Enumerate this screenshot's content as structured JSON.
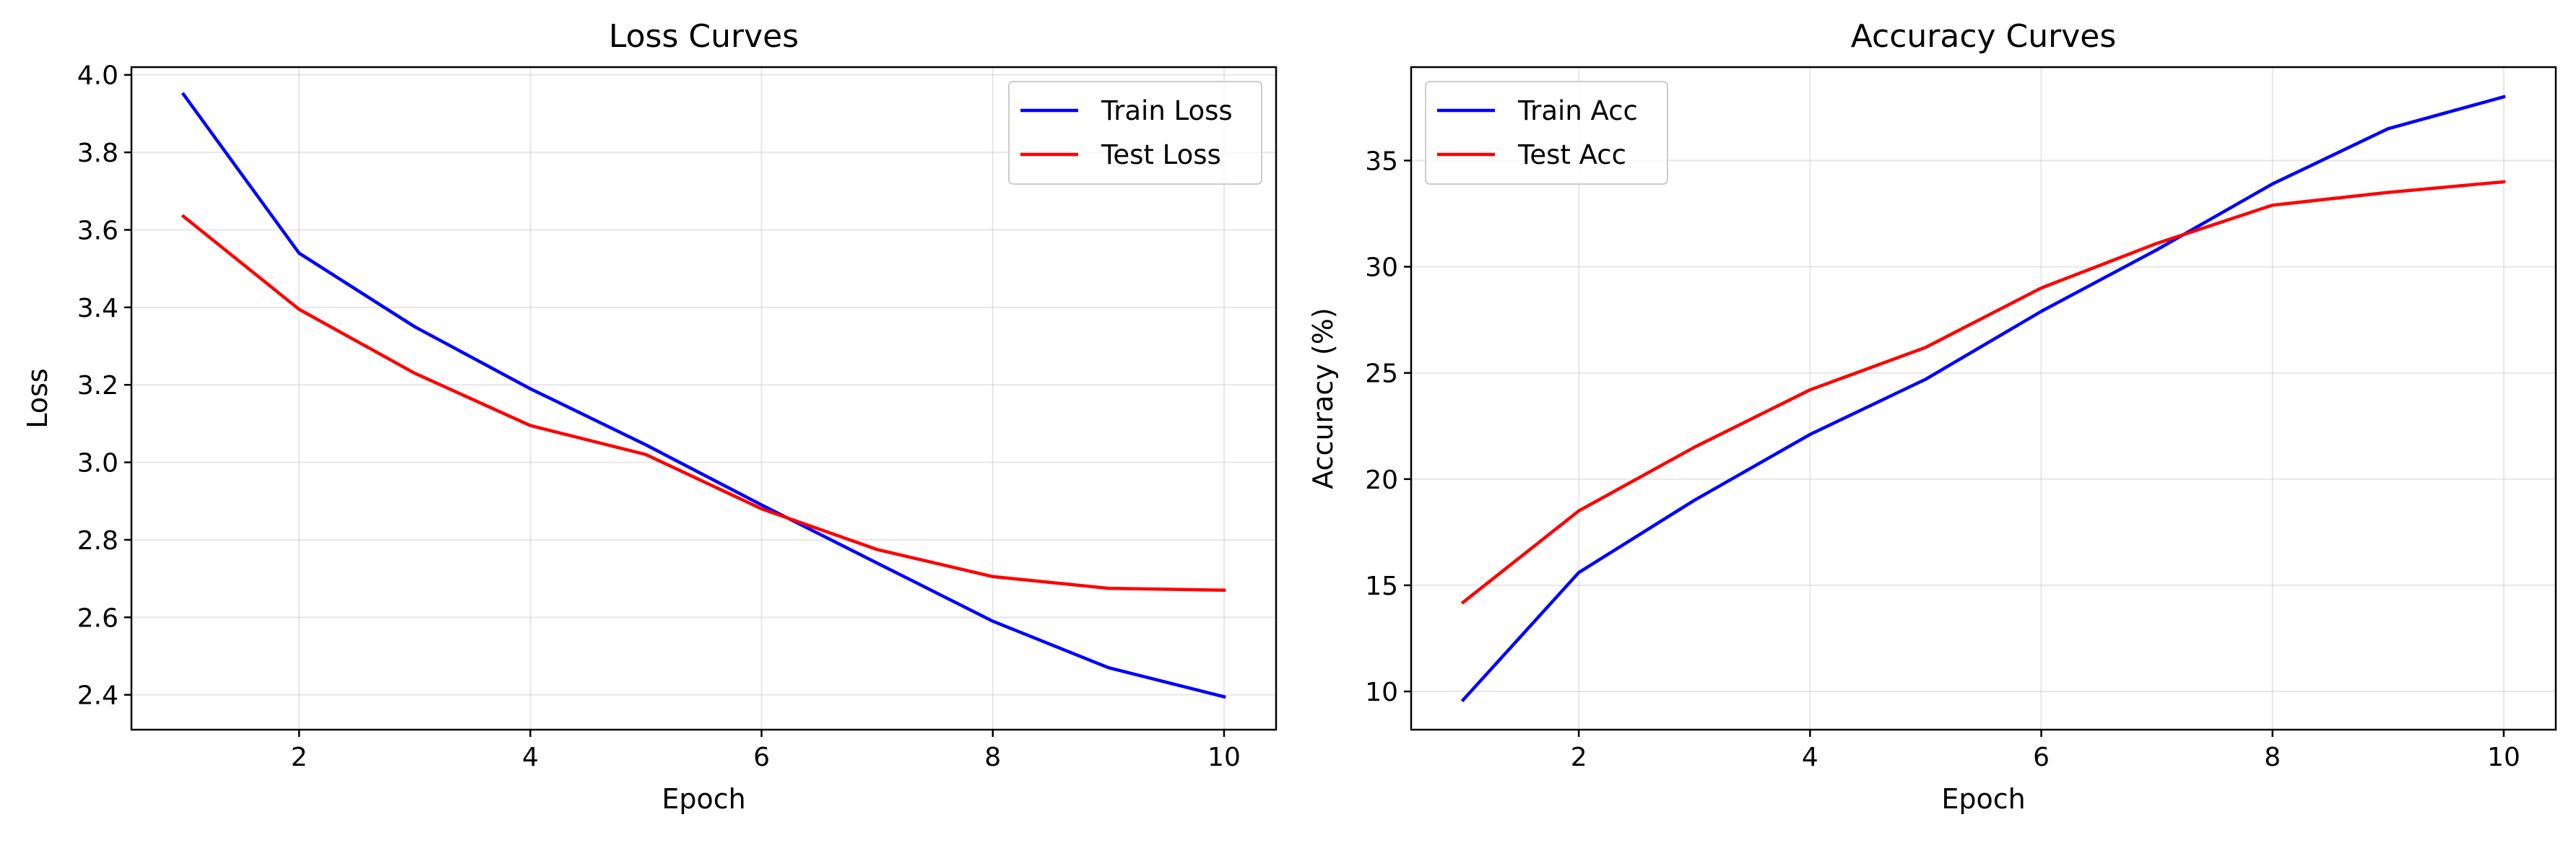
{
  "chart_data": [
    {
      "type": "line",
      "title": "Loss Curves",
      "xlabel": "Epoch",
      "ylabel": "Loss",
      "x": [
        1,
        2,
        3,
        4,
        5,
        6,
        7,
        8,
        9,
        10
      ],
      "xlim": [
        0.55,
        10.45
      ],
      "ylim": [
        2.31,
        4.02
      ],
      "xticks": [
        2,
        4,
        6,
        8,
        10
      ],
      "xtick_labels": [
        "2",
        "4",
        "6",
        "8",
        "10"
      ],
      "yticks": [
        2.4,
        2.6,
        2.8,
        3.0,
        3.2,
        3.4,
        3.6,
        3.8,
        4.0
      ],
      "ytick_labels": [
        "2.4",
        "2.6",
        "2.8",
        "3.0",
        "3.2",
        "3.4",
        "3.6",
        "3.8",
        "4.0"
      ],
      "grid": true,
      "legend_position": "top-right",
      "series": [
        {
          "name": "Train Loss",
          "color": "#0000ff",
          "values": [
            3.95,
            3.54,
            3.35,
            3.19,
            3.045,
            2.89,
            2.74,
            2.59,
            2.47,
            2.395
          ]
        },
        {
          "name": "Test Loss",
          "color": "#ff0000",
          "values": [
            3.635,
            3.395,
            3.23,
            3.095,
            3.02,
            2.88,
            2.775,
            2.705,
            2.675,
            2.67
          ]
        }
      ]
    },
    {
      "type": "line",
      "title": "Accuracy Curves",
      "xlabel": "Epoch",
      "ylabel": "Accuracy (%)",
      "x": [
        1,
        2,
        3,
        4,
        5,
        6,
        7,
        8,
        9,
        10
      ],
      "xlim": [
        0.55,
        10.45
      ],
      "ylim": [
        8.2,
        39.4
      ],
      "xticks": [
        2,
        4,
        6,
        8,
        10
      ],
      "xtick_labels": [
        "2",
        "4",
        "6",
        "8",
        "10"
      ],
      "yticks": [
        10,
        15,
        20,
        25,
        30,
        35
      ],
      "ytick_labels": [
        "10",
        "15",
        "20",
        "25",
        "30",
        "35"
      ],
      "grid": true,
      "legend_position": "top-left",
      "series": [
        {
          "name": "Train Acc",
          "color": "#0000ff",
          "values": [
            9.6,
            15.6,
            19.0,
            22.1,
            24.7,
            27.9,
            30.8,
            33.9,
            36.5,
            38.0
          ]
        },
        {
          "name": "Test Acc",
          "color": "#ff0000",
          "values": [
            14.2,
            18.5,
            21.5,
            24.2,
            26.2,
            29.0,
            31.1,
            32.9,
            33.5,
            34.0
          ]
        }
      ]
    }
  ]
}
